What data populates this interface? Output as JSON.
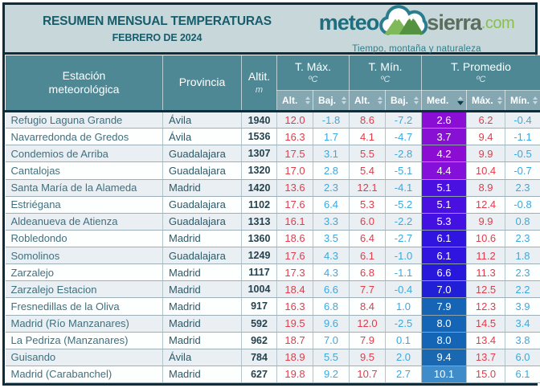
{
  "header": {
    "title": "RESUMEN MENSUAL TEMPERATURAS",
    "subtitle": "FEBRERO DE 2024",
    "logo": {
      "meteo": "meteo",
      "sierra": "sierra",
      "com": ".com",
      "tagline": "Tiempo, montaña y naturaleza"
    }
  },
  "colors": {
    "frame_border": "#0d2d3d",
    "band_background": "#c7d7da",
    "title_text": "#175d6b",
    "header_teal": "#4e8894",
    "subheader_teal": "#85a7b1",
    "value_high_red": "#e23c4c",
    "value_low_blue": "#3aa9e0",
    "logo_green": "#8abf4e"
  },
  "table": {
    "columns": {
      "station_line1": "Estación",
      "station_line2": "meteorológica",
      "province": "Provincia",
      "altitude_label": "Altit.",
      "altitude_unit": "m",
      "groups": [
        {
          "label": "T. Máx.",
          "unit": "ºC",
          "subs": [
            {
              "label": "Alt."
            },
            {
              "label": "Baj."
            }
          ]
        },
        {
          "label": "T. Mín.",
          "unit": "ºC",
          "subs": [
            {
              "label": "Alt."
            },
            {
              "label": "Baj."
            }
          ]
        },
        {
          "label": "T. Promedio",
          "unit": "ºC",
          "subs": [
            {
              "label": "Med.",
              "sort_active": true
            },
            {
              "label": "Máx."
            },
            {
              "label": "Mín."
            }
          ]
        }
      ]
    },
    "rows": [
      {
        "station": "Refugio Laguna Grande",
        "province": "Ávila",
        "altitude": "1940",
        "tmax_alt": "12.0",
        "tmax_baj": "-1.8",
        "tmin_alt": "8.6",
        "tmin_baj": "-7.2",
        "avg_med": "2.6",
        "med_color": "#8a0ed4",
        "avg_max": "6.2",
        "avg_min": "-0.4"
      },
      {
        "station": "Navarredonda de Gredos",
        "province": "Ávila",
        "altitude": "1536",
        "tmax_alt": "16.3",
        "tmax_baj": "1.7",
        "tmin_alt": "4.1",
        "tmin_baj": "-4.7",
        "avg_med": "3.7",
        "med_color": "#880fd4",
        "avg_max": "9.4",
        "avg_min": "-1.1"
      },
      {
        "station": "Condemios de Arriba",
        "province": "Guadalajara",
        "altitude": "1307",
        "tmax_alt": "17.5",
        "tmax_baj": "3.1",
        "tmin_alt": "5.5",
        "tmin_baj": "-2.8",
        "avg_med": "4.2",
        "med_color": "#8c0cd4",
        "avg_max": "9.9",
        "avg_min": "-0.5"
      },
      {
        "station": "Cantalojas",
        "province": "Guadalajara",
        "altitude": "1320",
        "tmax_alt": "17.0",
        "tmax_baj": "2.8",
        "tmin_alt": "5.4",
        "tmin_baj": "-5.1",
        "avg_med": "4.4",
        "med_color": "#8510d9",
        "avg_max": "10.4",
        "avg_min": "-0.7"
      },
      {
        "station": "Santa María de la Alameda",
        "province": "Madrid",
        "altitude": "1420",
        "tmax_alt": "13.6",
        "tmax_baj": "2.3",
        "tmin_alt": "12.1",
        "tmin_baj": "-4.1",
        "avg_med": "5.1",
        "med_color": "#4a10e2",
        "avg_max": "8.9",
        "avg_min": "2.3"
      },
      {
        "station": "Estriégana",
        "province": "Guadalajara",
        "altitude": "1102",
        "tmax_alt": "17.6",
        "tmax_baj": "6.4",
        "tmin_alt": "5.3",
        "tmin_baj": "-5.2",
        "avg_med": "5.1",
        "med_color": "#4a10e2",
        "avg_max": "12.4",
        "avg_min": "-0.8"
      },
      {
        "station": "Aldeanueva de Atienza",
        "province": "Guadalajara",
        "altitude": "1313",
        "tmax_alt": "16.1",
        "tmax_baj": "3.3",
        "tmin_alt": "6.0",
        "tmin_baj": "-2.2",
        "avg_med": "5.3",
        "med_color": "#4312e2",
        "avg_max": "9.9",
        "avg_min": "0.8"
      },
      {
        "station": "Robledondo",
        "province": "Madrid",
        "altitude": "1360",
        "tmax_alt": "18.6",
        "tmax_baj": "3.5",
        "tmin_alt": "6.4",
        "tmin_baj": "-2.7",
        "avg_med": "6.1",
        "med_color": "#3014df",
        "avg_max": "10.6",
        "avg_min": "2.3"
      },
      {
        "station": "Somolinos",
        "province": "Guadalajara",
        "altitude": "1249",
        "tmax_alt": "17.6",
        "tmax_baj": "4.3",
        "tmin_alt": "6.1",
        "tmin_baj": "-1.0",
        "avg_med": "6.1",
        "med_color": "#3014df",
        "avg_max": "11.2",
        "avg_min": "1.8"
      },
      {
        "station": "Zarzalejo",
        "province": "Madrid",
        "altitude": "1117",
        "tmax_alt": "17.3",
        "tmax_baj": "4.3",
        "tmin_alt": "6.8",
        "tmin_baj": "-1.1",
        "avg_med": "6.6",
        "med_color": "#2818dc",
        "avg_max": "11.3",
        "avg_min": "2.3"
      },
      {
        "station": "Zarzalejo Estacion",
        "province": "Madrid",
        "altitude": "1004",
        "tmax_alt": "18.4",
        "tmax_baj": "6.6",
        "tmin_alt": "7.7",
        "tmin_baj": "-0.4",
        "avg_med": "7.0",
        "med_color": "#2220d6",
        "avg_max": "12.5",
        "avg_min": "2.2"
      },
      {
        "station": "Fresnedillas de la Oliva",
        "province": "Madrid",
        "altitude": "917",
        "tmax_alt": "16.3",
        "tmax_baj": "6.8",
        "tmin_alt": "8.4",
        "tmin_baj": "1.0",
        "avg_med": "7.9",
        "med_color": "#1564b5",
        "avg_max": "12.3",
        "avg_min": "3.9"
      },
      {
        "station": "Madrid (Río Manzanares)",
        "province": "Madrid",
        "altitude": "592",
        "tmax_alt": "19.5",
        "tmax_baj": "9.6",
        "tmin_alt": "12.0",
        "tmin_baj": "-2.5",
        "avg_med": "8.0",
        "med_color": "#1565b7",
        "avg_max": "14.5",
        "avg_min": "3.4"
      },
      {
        "station": "La Pedriza (Manzanares)",
        "province": "Madrid",
        "altitude": "962",
        "tmax_alt": "18.7",
        "tmax_baj": "7.0",
        "tmin_alt": "7.9",
        "tmin_baj": "0.1",
        "avg_med": "8.0",
        "med_color": "#1565b7",
        "avg_max": "13.4",
        "avg_min": "3.8"
      },
      {
        "station": "Guisando",
        "province": "Ávila",
        "altitude": "784",
        "tmax_alt": "18.9",
        "tmax_baj": "5.5",
        "tmin_alt": "9.5",
        "tmin_baj": "2.0",
        "avg_med": "9.4",
        "med_color": "#1b68b2",
        "avg_max": "13.7",
        "avg_min": "6.0"
      },
      {
        "station": "Madrid (Carabanchel)",
        "province": "Madrid",
        "altitude": "627",
        "tmax_alt": "19.8",
        "tmax_baj": "9.2",
        "tmin_alt": "10.7",
        "tmin_baj": "2.7",
        "avg_med": "10.1",
        "med_color": "#3f8ccb",
        "avg_max": "15.0",
        "avg_min": "6.1"
      }
    ]
  }
}
